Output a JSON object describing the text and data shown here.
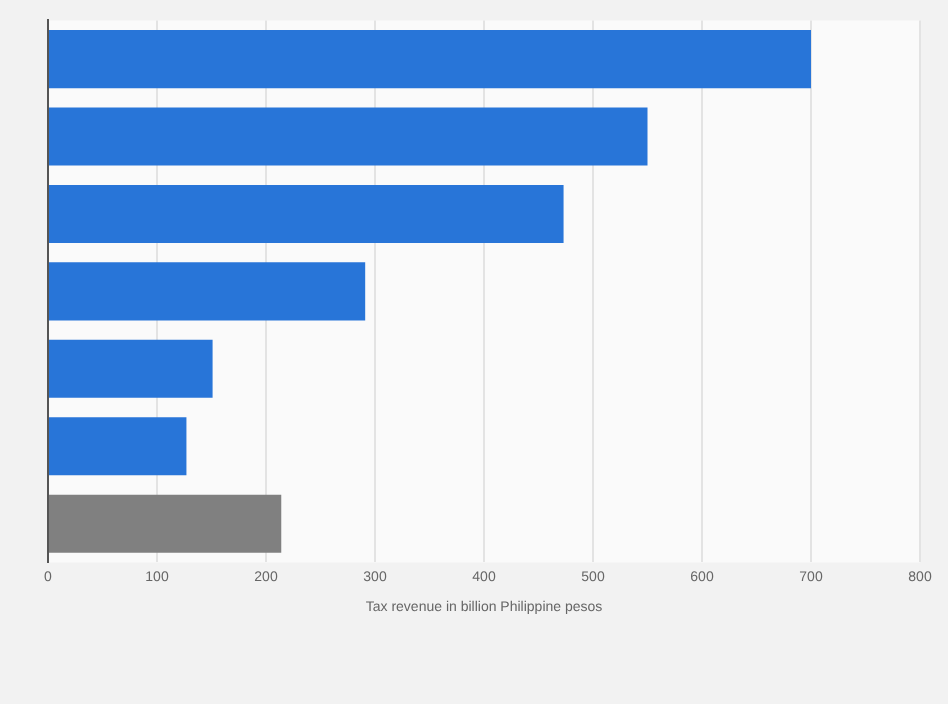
{
  "chart_data": {
    "type": "bar",
    "orientation": "horizontal",
    "xlabel": "Tax revenue in billion Philippine pesos",
    "categories": [
      null,
      null,
      null,
      null,
      null,
      null,
      null
    ],
    "values": [
      700,
      550,
      473,
      291,
      151,
      127,
      214
    ],
    "colors": [
      "#2875d8",
      "#2875d8",
      "#2875d8",
      "#2875d8",
      "#2875d8",
      "#2875d8",
      "#808080"
    ],
    "xlim": [
      0,
      800
    ],
    "xticks": [
      0,
      100,
      200,
      300,
      400,
      500,
      600,
      700,
      800
    ],
    "grid": "x",
    "legend": false
  }
}
